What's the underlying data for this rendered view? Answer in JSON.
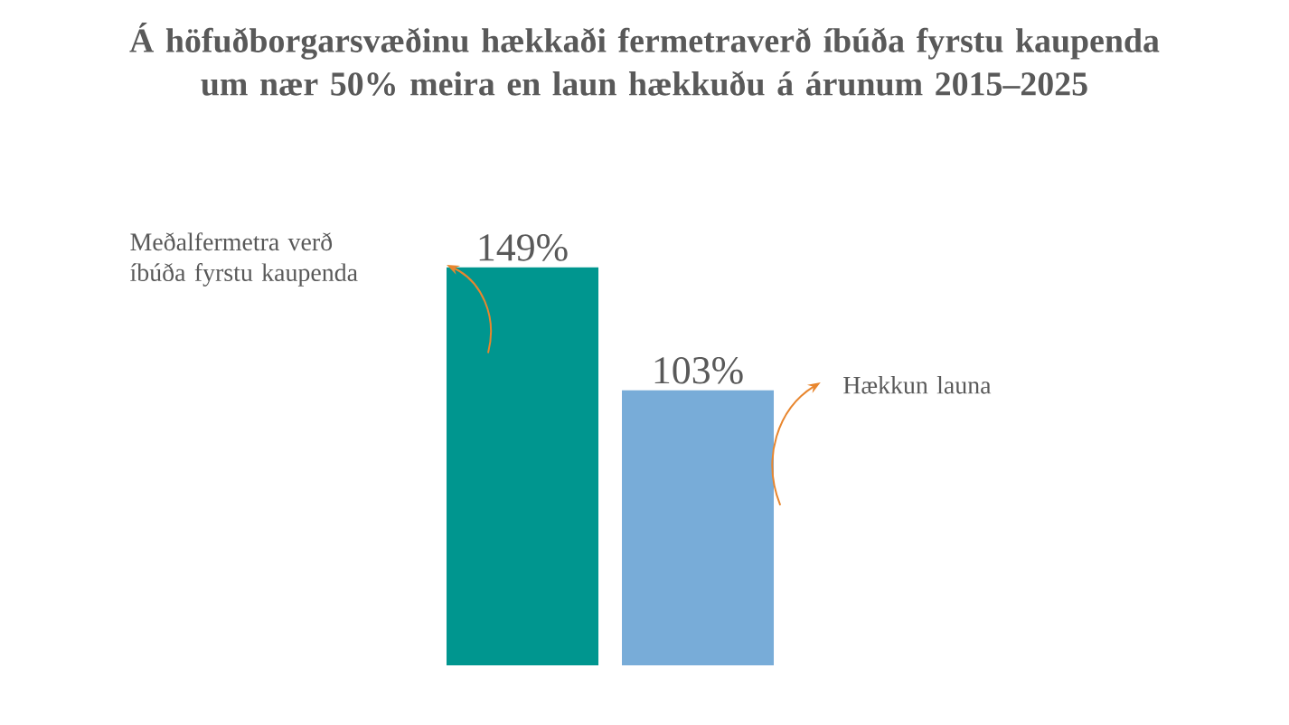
{
  "chart_data": {
    "type": "bar",
    "title": "Á höfuðborgarsvæðinu hækkaði fermetraverð íbúða fyrstu kaupenda um nær 50% meira en laun hækkuðu á árunum 2015–2025",
    "categories": [
      null,
      null
    ],
    "values": [
      149,
      103
    ],
    "colors": [
      "#00968f",
      "#78acd8"
    ],
    "value_labels": [
      "149%",
      "103%"
    ],
    "annotations": [
      "Meðalfermetra verð íbúða fyrstu kaupenda",
      "Hækkun launa"
    ]
  }
}
